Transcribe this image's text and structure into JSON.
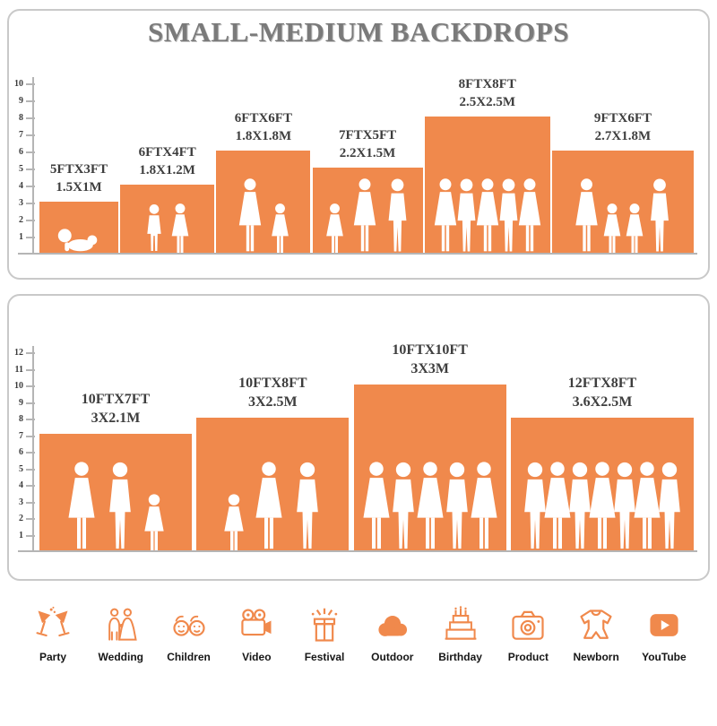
{
  "title": "SMALL-MEDIUM BACKDROPS",
  "colors": {
    "orange": "#F0894C",
    "title": "#7A7A7A",
    "label": "#3E3E3E",
    "border": "#C9C9C9",
    "ruler": "#B5B5B5"
  },
  "chart_data": [
    {
      "type": "bar",
      "panel": "small-medium-backdrops",
      "unit": "FT",
      "ruler_max": 10,
      "ylim": [
        0,
        10
      ],
      "bars": [
        {
          "label_ft": "5FTX3FT",
          "label_m": "1.5X1M",
          "width_ft": 5,
          "height_ft": 3,
          "people": [
            "baby"
          ]
        },
        {
          "label_ft": "6FTX4FT",
          "label_m": "1.8X1.2M",
          "width_ft": 6,
          "height_ft": 4,
          "people": [
            "child-boy",
            "child-girl"
          ]
        },
        {
          "label_ft": "6FTX6FT",
          "label_m": "1.8X1.8M",
          "width_ft": 6,
          "height_ft": 6,
          "people": [
            "woman",
            "child-girl"
          ]
        },
        {
          "label_ft": "7FTX5FT",
          "label_m": "2.2X1.5M",
          "width_ft": 7,
          "height_ft": 5,
          "people": [
            "child-girl",
            "woman",
            "man"
          ]
        },
        {
          "label_ft": "8FTX8FT",
          "label_m": "2.5X2.5M",
          "width_ft": 8,
          "height_ft": 8,
          "people": [
            "woman",
            "man",
            "woman",
            "man",
            "woman"
          ]
        },
        {
          "label_ft": "9FTX6FT",
          "label_m": "2.7X1.8M",
          "width_ft": 9,
          "height_ft": 6,
          "people": [
            "woman",
            "child-girl",
            "child-girl",
            "man"
          ]
        }
      ]
    },
    {
      "type": "bar",
      "panel": "large-backdrops",
      "unit": "FT",
      "ruler_max": 12,
      "ylim": [
        0,
        12
      ],
      "bars": [
        {
          "label_ft": "10FTX7FT",
          "label_m": "3X2.1M",
          "width_ft": 10,
          "height_ft": 7,
          "people": [
            "woman",
            "man",
            "child-girl"
          ]
        },
        {
          "label_ft": "10FTX8FT",
          "label_m": "3X2.5M",
          "width_ft": 10,
          "height_ft": 8,
          "people": [
            "child-girl",
            "woman",
            "man"
          ]
        },
        {
          "label_ft": "10FTX10FT",
          "label_m": "3X3M",
          "width_ft": 10,
          "height_ft": 10,
          "people": [
            "woman",
            "man",
            "woman",
            "man",
            "woman"
          ]
        },
        {
          "label_ft": "12FTX8FT",
          "label_m": "3.6X2.5M",
          "width_ft": 12,
          "height_ft": 8,
          "people": [
            "man",
            "woman",
            "man",
            "woman",
            "man",
            "woman",
            "man"
          ]
        }
      ]
    }
  ],
  "categories": [
    {
      "icon": "party-icon",
      "label": "Party"
    },
    {
      "icon": "wedding-icon",
      "label": "Wedding"
    },
    {
      "icon": "children-icon",
      "label": "Children"
    },
    {
      "icon": "video-icon",
      "label": "Video"
    },
    {
      "icon": "festival-icon",
      "label": "Festival"
    },
    {
      "icon": "outdoor-icon",
      "label": "Outdoor"
    },
    {
      "icon": "birthday-icon",
      "label": "Birthday"
    },
    {
      "icon": "product-icon",
      "label": "Product"
    },
    {
      "icon": "newborn-icon",
      "label": "Newborn"
    },
    {
      "icon": "youtube-icon",
      "label": "YouTube"
    }
  ]
}
